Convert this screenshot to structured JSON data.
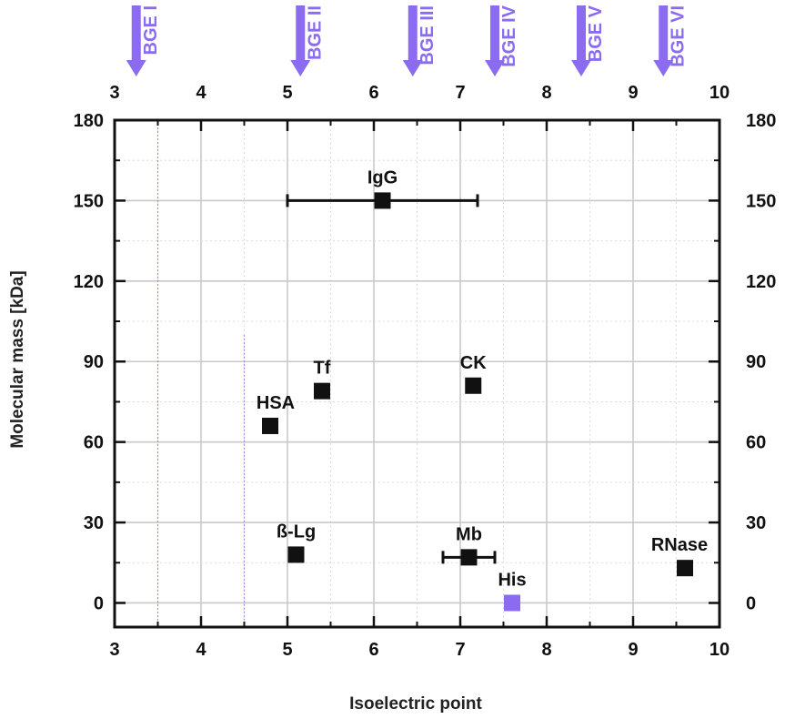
{
  "chart_data": {
    "type": "scatter",
    "xlabel": "Isoelectric point",
    "ylabel": "Molecular mass [kDa]",
    "xlim": [
      3,
      10
    ],
    "ylim": [
      -9,
      180
    ],
    "x_ticks": [
      "3",
      "4",
      "5",
      "6",
      "7",
      "8",
      "9",
      "10"
    ],
    "y_ticks": [
      "0",
      "30",
      "60",
      "90",
      "120",
      "150",
      "180"
    ],
    "x_tick_values": [
      3,
      4,
      5,
      6,
      7,
      8,
      9,
      10
    ],
    "y_tick_values": [
      0,
      30,
      60,
      90,
      120,
      150,
      180
    ],
    "grid": true,
    "colors": {
      "default": "#111111",
      "highlight": "#8b6cf0"
    },
    "points": [
      {
        "label": "IgG",
        "x": 6.1,
        "y": 150,
        "xerr": [
          5.0,
          7.2
        ]
      },
      {
        "label": "Tf",
        "x": 5.4,
        "y": 79
      },
      {
        "label": "HSA",
        "x": 4.8,
        "y": 66
      },
      {
        "label": "CK",
        "x": 7.15,
        "y": 81
      },
      {
        "label": "ß-Lg",
        "x": 5.1,
        "y": 18
      },
      {
        "label": "Mb",
        "x": 7.1,
        "y": 17,
        "xerr": [
          6.8,
          7.4
        ]
      },
      {
        "label": "RNase",
        "x": 9.6,
        "y": 13
      },
      {
        "label": "His",
        "x": 7.6,
        "y": 0,
        "highlight": true
      }
    ],
    "reference_lines_x": [
      3.5,
      4.5
    ],
    "bge_markers": [
      {
        "label": "BGE I",
        "x": 3.25
      },
      {
        "label": "BGE II",
        "x": 5.15
      },
      {
        "label": "BGE III",
        "x": 6.45
      },
      {
        "label": "BGE IV",
        "x": 7.4
      },
      {
        "label": "BGE V",
        "x": 8.4
      },
      {
        "label": "BGE VI",
        "x": 9.35
      }
    ]
  }
}
